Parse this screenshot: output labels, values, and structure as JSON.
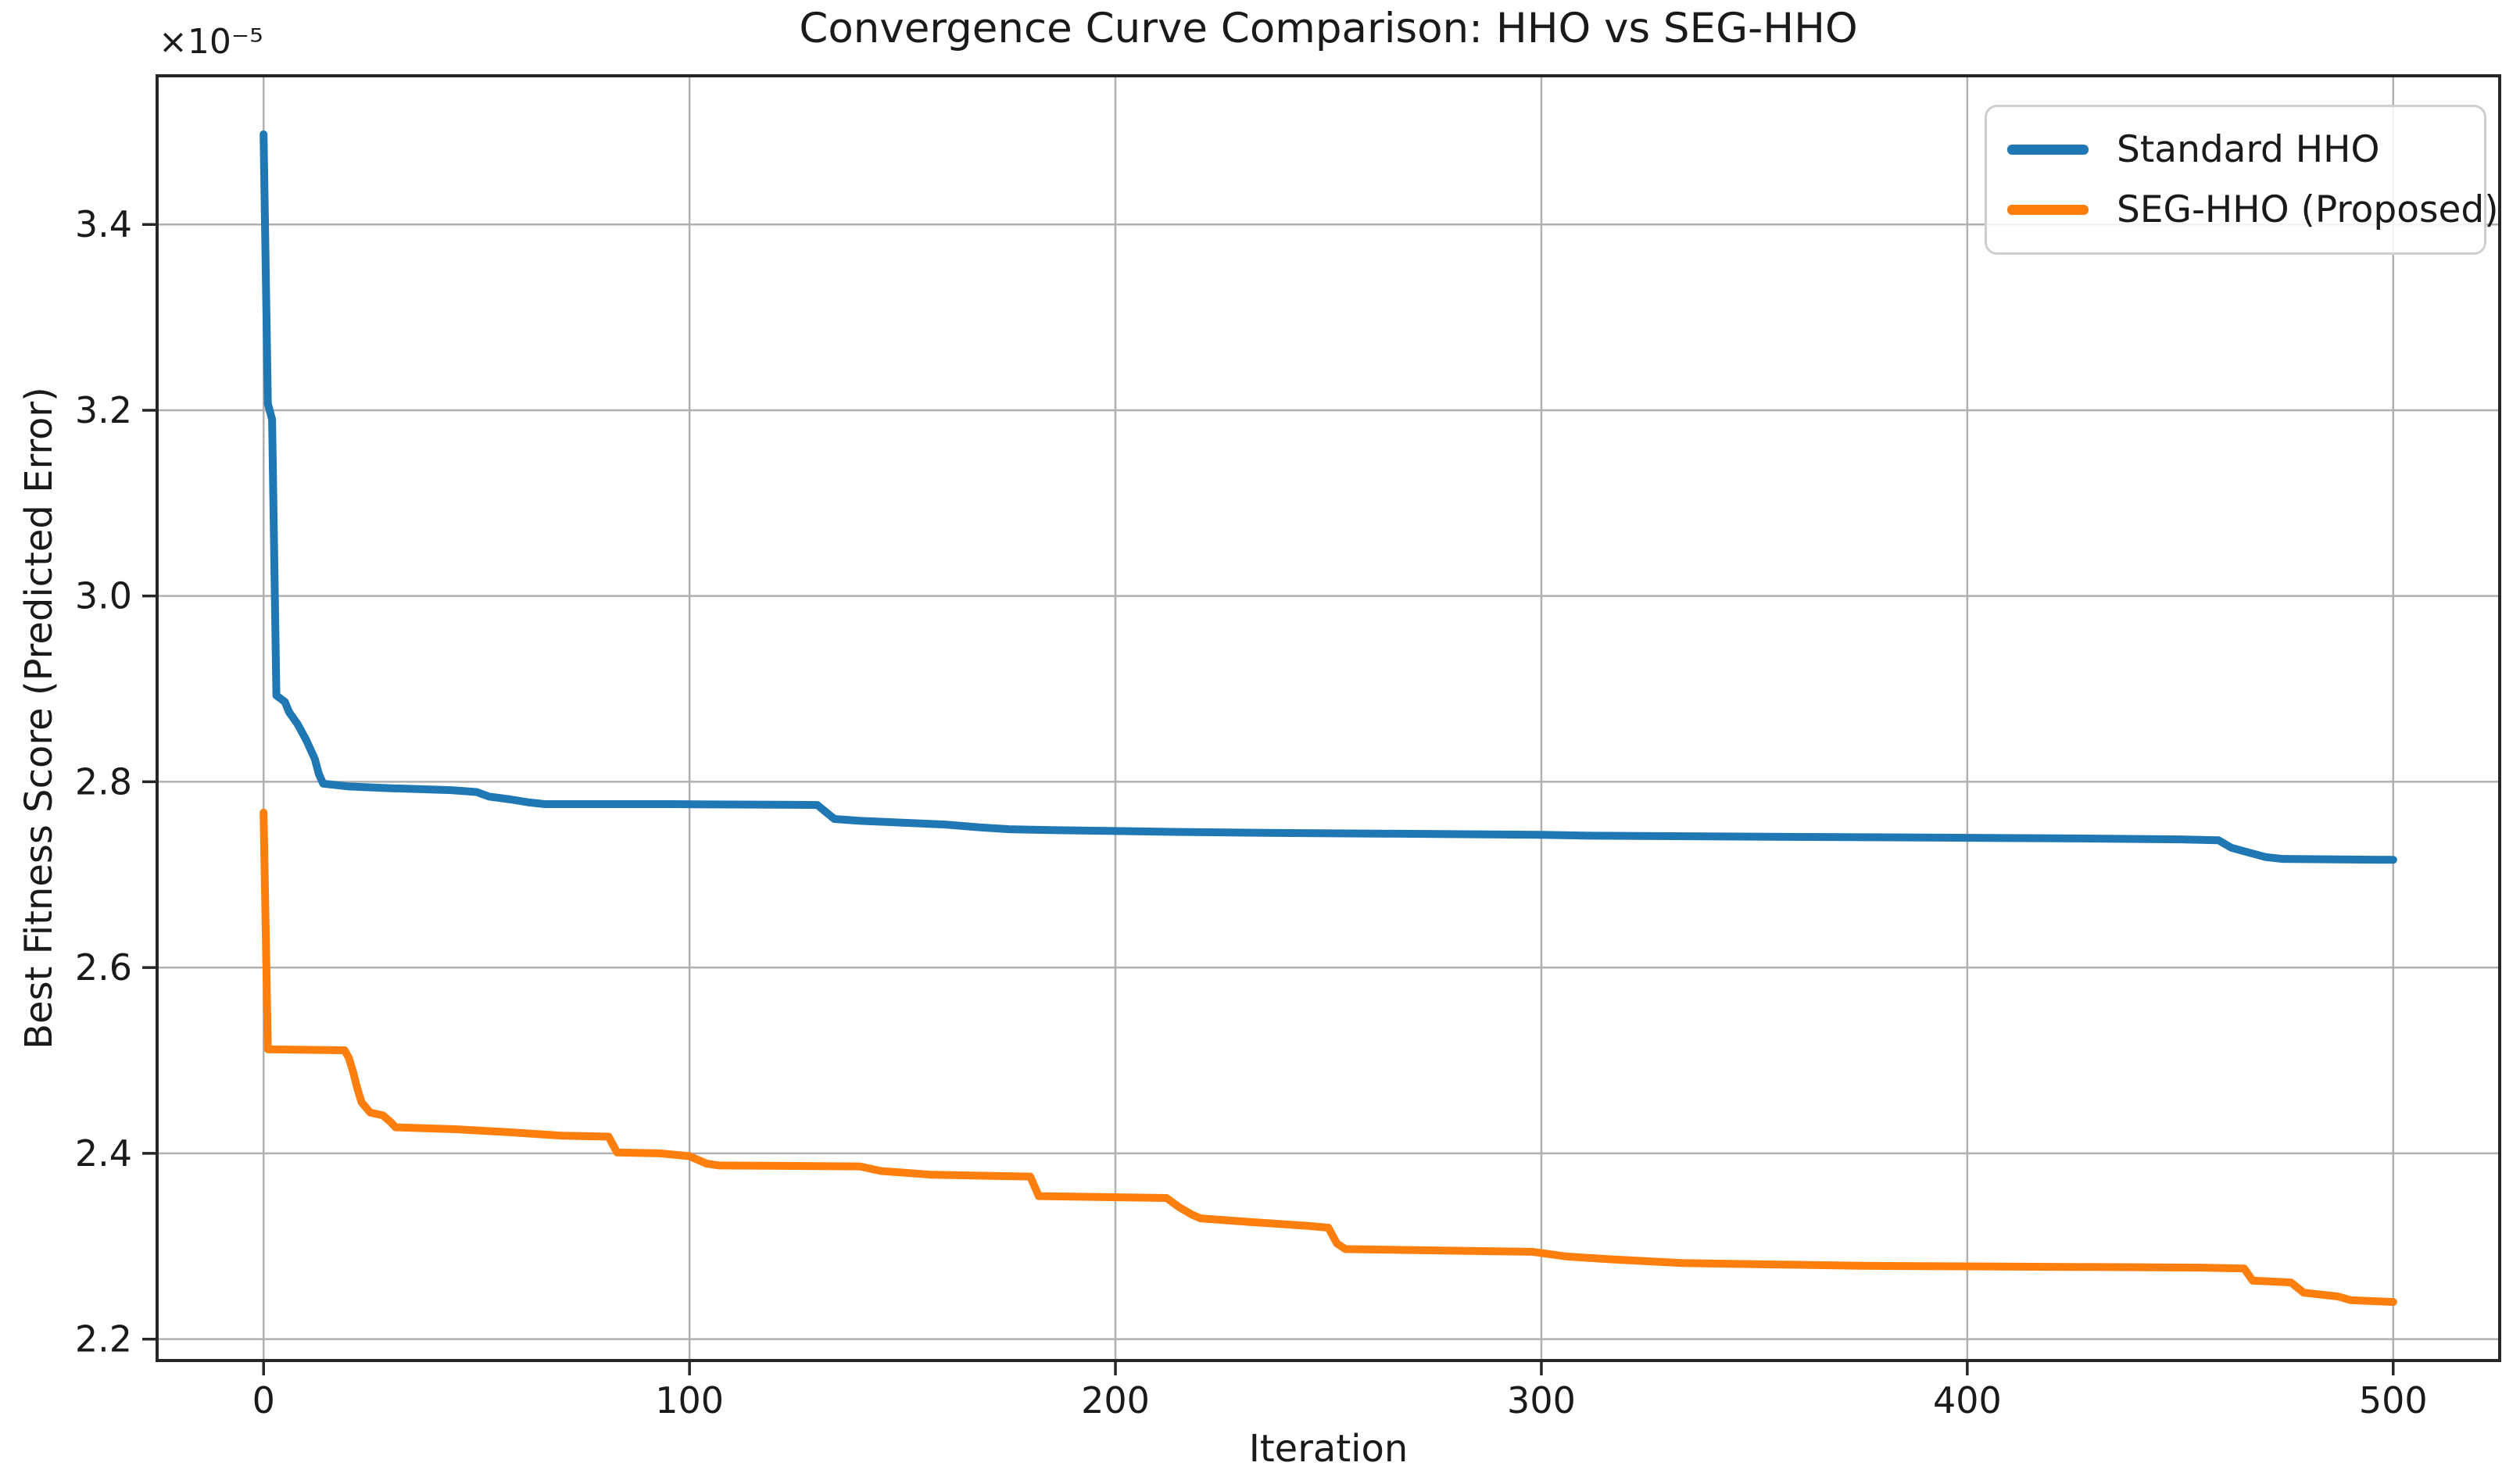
{
  "chart_data": {
    "type": "line",
    "title": "Convergence Curve Comparison: HHO vs SEG-HHO",
    "xlabel": "Iteration",
    "ylabel": "Best Fitness Score (Predicted Error)",
    "y_offset_label": "×10⁻⁵",
    "xlim": [
      -25,
      525
    ],
    "ylim": [
      2.177,
      3.56
    ],
    "x_ticks": [
      0,
      100,
      200,
      300,
      400,
      500
    ],
    "x_tick_labels": [
      "0",
      "100",
      "200",
      "300",
      "400",
      "500"
    ],
    "y_ticks": [
      2.2,
      2.4,
      2.6,
      2.8,
      3.0,
      3.2,
      3.4
    ],
    "y_tick_labels": [
      "2.2",
      "2.4",
      "2.6",
      "2.8",
      "3.0",
      "3.2",
      "3.4"
    ],
    "grid": true,
    "grid_color": "#b0b0b0",
    "spine_color": "#262626",
    "legend_position": "upper right",
    "series": [
      {
        "name": "Standard HHO",
        "color": "#1f77b4",
        "points": [
          [
            0,
            3.497
          ],
          [
            1,
            3.207
          ],
          [
            2,
            3.19
          ],
          [
            3,
            2.893
          ],
          [
            5,
            2.886
          ],
          [
            6,
            2.875
          ],
          [
            8,
            2.862
          ],
          [
            10,
            2.845
          ],
          [
            12,
            2.825
          ],
          [
            13,
            2.808
          ],
          [
            14,
            2.798
          ],
          [
            20,
            2.795
          ],
          [
            30,
            2.793
          ],
          [
            44,
            2.791
          ],
          [
            50,
            2.789
          ],
          [
            53,
            2.784
          ],
          [
            58,
            2.781
          ],
          [
            62,
            2.778
          ],
          [
            66,
            2.776
          ],
          [
            95,
            2.776
          ],
          [
            130,
            2.775
          ],
          [
            134,
            2.76
          ],
          [
            140,
            2.758
          ],
          [
            150,
            2.756
          ],
          [
            160,
            2.754
          ],
          [
            168,
            2.751
          ],
          [
            175,
            2.749
          ],
          [
            185,
            2.748
          ],
          [
            200,
            2.747
          ],
          [
            215,
            2.746
          ],
          [
            235,
            2.745
          ],
          [
            270,
            2.744
          ],
          [
            300,
            2.743
          ],
          [
            312,
            2.742
          ],
          [
            350,
            2.741
          ],
          [
            390,
            2.74
          ],
          [
            425,
            2.739
          ],
          [
            450,
            2.738
          ],
          [
            459,
            2.737
          ],
          [
            462,
            2.729
          ],
          [
            466,
            2.724
          ],
          [
            470,
            2.719
          ],
          [
            474,
            2.717
          ],
          [
            500,
            2.716
          ]
        ]
      },
      {
        "name": "SEG-HHO (Proposed)",
        "color": "#ff7f0e",
        "points": [
          [
            0,
            2.767
          ],
          [
            1,
            2.512
          ],
          [
            19,
            2.511
          ],
          [
            20,
            2.503
          ],
          [
            21,
            2.488
          ],
          [
            22,
            2.47
          ],
          [
            23,
            2.455
          ],
          [
            25,
            2.444
          ],
          [
            28,
            2.441
          ],
          [
            29,
            2.437
          ],
          [
            30,
            2.433
          ],
          [
            31,
            2.428
          ],
          [
            45,
            2.426
          ],
          [
            57,
            2.423
          ],
          [
            70,
            2.419
          ],
          [
            81,
            2.418
          ],
          [
            83,
            2.401
          ],
          [
            93,
            2.4
          ],
          [
            100,
            2.397
          ],
          [
            104,
            2.389
          ],
          [
            107,
            2.387
          ],
          [
            140,
            2.386
          ],
          [
            145,
            2.381
          ],
          [
            157,
            2.377
          ],
          [
            180,
            2.375
          ],
          [
            182,
            2.354
          ],
          [
            212,
            2.352
          ],
          [
            215,
            2.342
          ],
          [
            218,
            2.334
          ],
          [
            220,
            2.33
          ],
          [
            232,
            2.326
          ],
          [
            245,
            2.322
          ],
          [
            250,
            2.32
          ],
          [
            252,
            2.303
          ],
          [
            254,
            2.297
          ],
          [
            298,
            2.294
          ],
          [
            306,
            2.289
          ],
          [
            316,
            2.286
          ],
          [
            333,
            2.282
          ],
          [
            375,
            2.279
          ],
          [
            455,
            2.277
          ],
          [
            465,
            2.276
          ],
          [
            467,
            2.263
          ],
          [
            476,
            2.261
          ],
          [
            479,
            2.25
          ],
          [
            487,
            2.246
          ],
          [
            490,
            2.242
          ],
          [
            500,
            2.24
          ]
        ]
      }
    ]
  }
}
